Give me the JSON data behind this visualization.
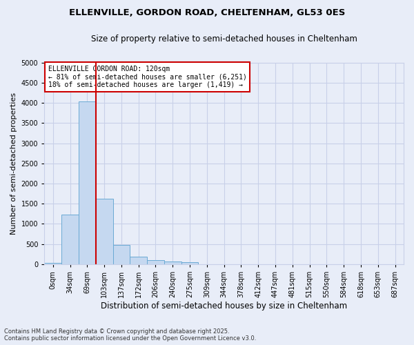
{
  "title1": "ELLENVILLE, GORDON ROAD, CHELTENHAM, GL53 0ES",
  "title2": "Size of property relative to semi-detached houses in Cheltenham",
  "xlabel": "Distribution of semi-detached houses by size in Cheltenham",
  "ylabel": "Number of semi-detached properties",
  "categories": [
    "0sqm",
    "34sqm",
    "69sqm",
    "103sqm",
    "137sqm",
    "172sqm",
    "206sqm",
    "240sqm",
    "275sqm",
    "309sqm",
    "344sqm",
    "378sqm",
    "412sqm",
    "447sqm",
    "481sqm",
    "515sqm",
    "550sqm",
    "584sqm",
    "618sqm",
    "653sqm",
    "687sqm"
  ],
  "values": [
    40,
    1230,
    4030,
    1630,
    480,
    185,
    105,
    65,
    55,
    0,
    0,
    0,
    0,
    0,
    0,
    0,
    0,
    0,
    0,
    0,
    0
  ],
  "bar_color": "#c5d8f0",
  "bar_edge_color": "#6aaad4",
  "vline_color": "#cc0000",
  "annotation_title": "ELLENVILLE GORDON ROAD: 120sqm",
  "annotation_line1": "← 81% of semi-detached houses are smaller (6,251)",
  "annotation_line2": "18% of semi-detached houses are larger (1,419) →",
  "annotation_box_color": "#cc0000",
  "ylim": [
    0,
    5000
  ],
  "yticks": [
    0,
    500,
    1000,
    1500,
    2000,
    2500,
    3000,
    3500,
    4000,
    4500,
    5000
  ],
  "footer1": "Contains HM Land Registry data © Crown copyright and database right 2025.",
  "footer2": "Contains public sector information licensed under the Open Government Licence v3.0.",
  "bg_color": "#e8edf8",
  "plot_bg_color": "#e8edf8",
  "grid_color": "#c8d0e8",
  "title1_fontsize": 9.5,
  "title2_fontsize": 8.5,
  "ylabel_fontsize": 8,
  "xlabel_fontsize": 8.5,
  "tick_fontsize": 7,
  "annotation_fontsize": 7,
  "footer_fontsize": 6
}
